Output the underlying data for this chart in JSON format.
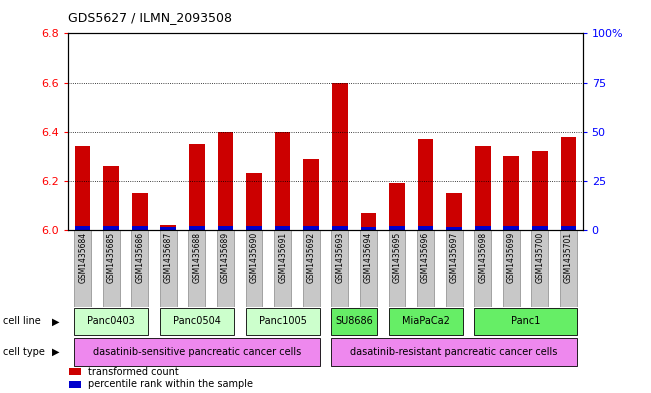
{
  "title": "GDS5627 / ILMN_2093508",
  "samples": [
    "GSM1435684",
    "GSM1435685",
    "GSM1435686",
    "GSM1435687",
    "GSM1435688",
    "GSM1435689",
    "GSM1435690",
    "GSM1435691",
    "GSM1435692",
    "GSM1435693",
    "GSM1435694",
    "GSM1435695",
    "GSM1435696",
    "GSM1435697",
    "GSM1435698",
    "GSM1435699",
    "GSM1435700",
    "GSM1435701"
  ],
  "red_values": [
    6.34,
    6.26,
    6.15,
    6.02,
    6.35,
    6.4,
    6.23,
    6.4,
    6.29,
    6.6,
    6.07,
    6.19,
    6.37,
    6.15,
    6.34,
    6.3,
    6.32,
    6.38
  ],
  "blue_heights": [
    0.015,
    0.015,
    0.015,
    0.01,
    0.015,
    0.015,
    0.015,
    0.015,
    0.015,
    0.015,
    0.01,
    0.015,
    0.015,
    0.012,
    0.015,
    0.015,
    0.015,
    0.015
  ],
  "ymin": 6.0,
  "ymax": 6.8,
  "yticks_left": [
    6.0,
    6.2,
    6.4,
    6.6,
    6.8
  ],
  "yticks_right": [
    0,
    25,
    50,
    75,
    100
  ],
  "y2labels": [
    "0",
    "25",
    "50",
    "75",
    "100%"
  ],
  "grid_lines": [
    6.2,
    6.4,
    6.6
  ],
  "cell_lines": [
    {
      "label": "Panc0403",
      "start": 0,
      "end": 2,
      "color": "#ccffcc"
    },
    {
      "label": "Panc0504",
      "start": 3,
      "end": 5,
      "color": "#ccffcc"
    },
    {
      "label": "Panc1005",
      "start": 6,
      "end": 8,
      "color": "#ccffcc"
    },
    {
      "label": "SU8686",
      "start": 9,
      "end": 10,
      "color": "#66ee66"
    },
    {
      "label": "MiaPaCa2",
      "start": 11,
      "end": 13,
      "color": "#66ee66"
    },
    {
      "label": "Panc1",
      "start": 14,
      "end": 17,
      "color": "#66ee66"
    }
  ],
  "cell_types": [
    {
      "label": "dasatinib-sensitive pancreatic cancer cells",
      "start": 0,
      "end": 8,
      "color": "#ee88ee"
    },
    {
      "label": "dasatinib-resistant pancreatic cancer cells",
      "start": 9,
      "end": 17,
      "color": "#ee88ee"
    }
  ],
  "bar_color": "#cc0000",
  "blue_color": "#0000cc",
  "base": 6.0,
  "bar_width": 0.55,
  "sample_label_bg": "#c8c8c8",
  "legend_items": [
    {
      "color": "#cc0000",
      "label": "transformed count"
    },
    {
      "color": "#0000cc",
      "label": "percentile rank within the sample"
    }
  ]
}
